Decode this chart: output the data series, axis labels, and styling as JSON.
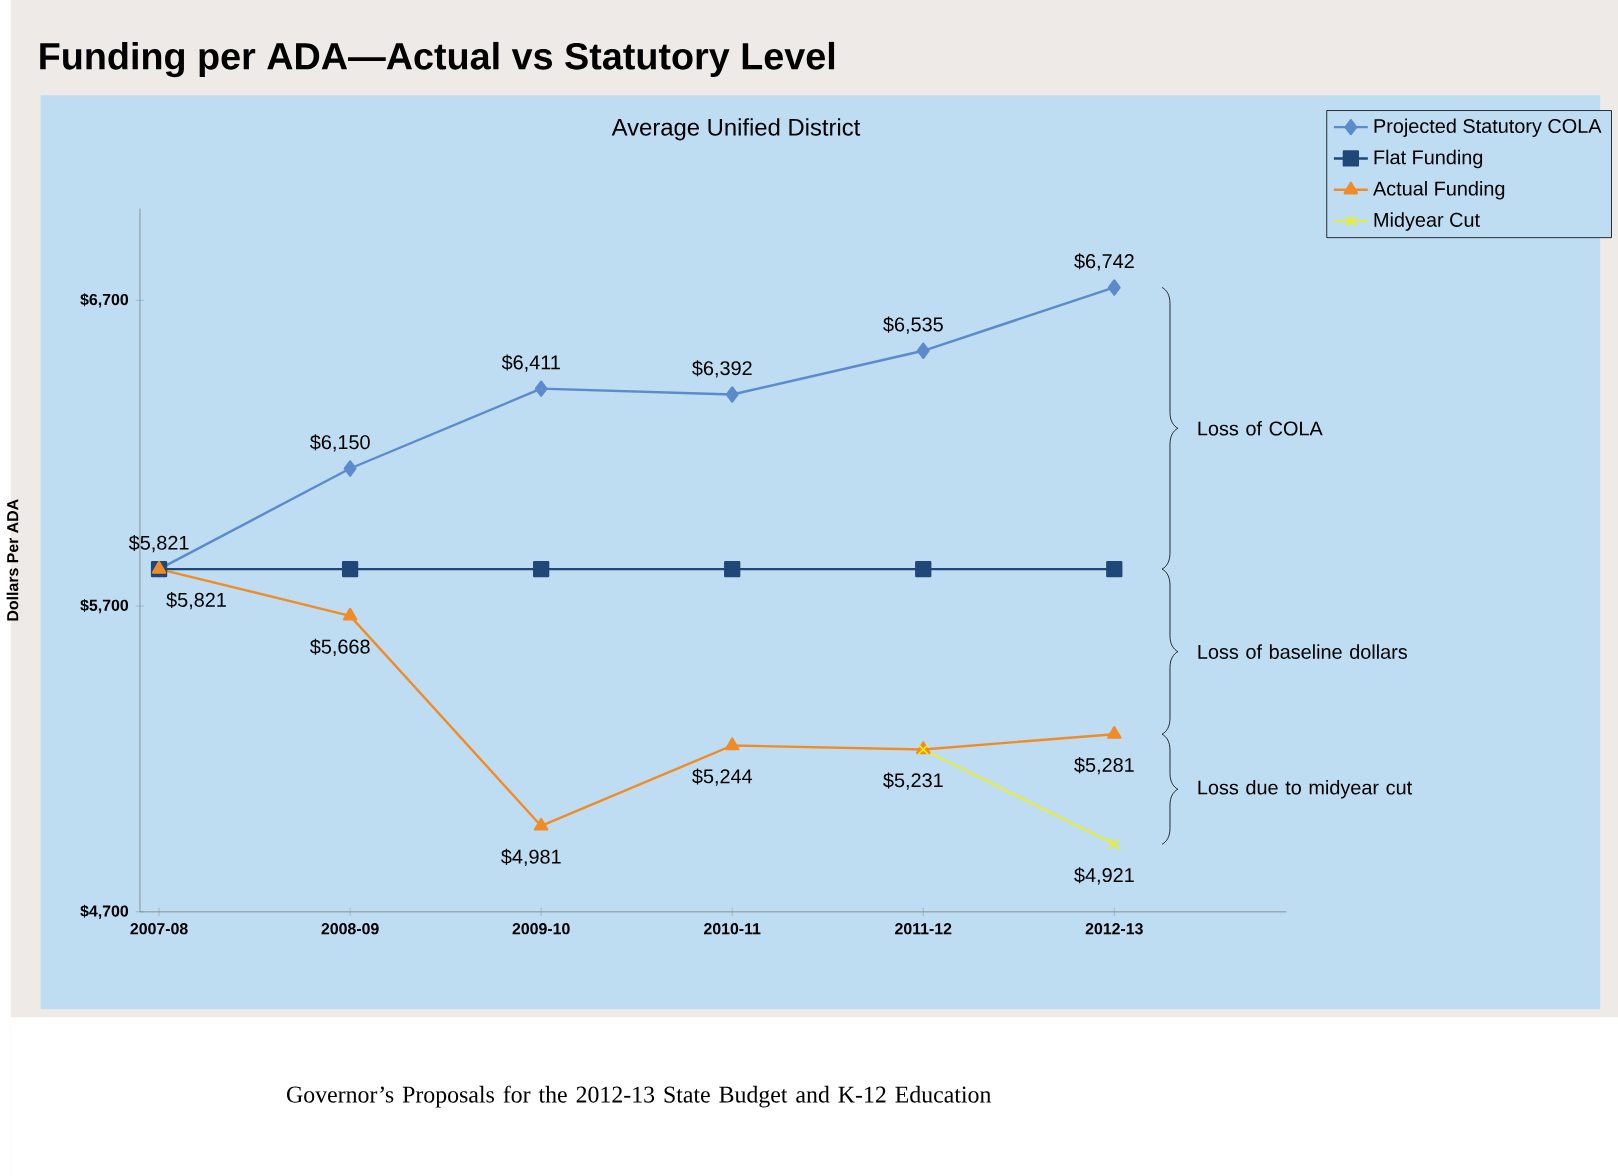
{
  "chart_data": {
    "type": "line",
    "title": "Funding per ADA—Actual vs Statutory Level",
    "subtitle": "Average Unified District",
    "ylabel": "Dollars Per ADA",
    "categories": [
      "2007-08",
      "2008-09",
      "2009-10",
      "2010-11",
      "2011-12",
      "2012-13"
    ],
    "ylim": [
      4700,
      7000
    ],
    "yticks": [
      {
        "value": 4700,
        "label": "$4,700"
      },
      {
        "value": 5700,
        "label": "$5,700"
      },
      {
        "value": 6700,
        "label": "$6,700"
      }
    ],
    "series": [
      {
        "name": "Projected Statutory COLA",
        "color": "#5b8bcb",
        "marker": "diamond",
        "values": [
          5821,
          6150,
          6411,
          6392,
          6535,
          6742
        ],
        "value_labels": [
          "$5,821",
          "$6,150",
          "$6,411",
          "$6,392",
          "$6,535",
          "$6,742"
        ]
      },
      {
        "name": "Flat Funding",
        "color": "#1f4778",
        "marker": "square",
        "values": [
          5821,
          5821,
          5821,
          5821,
          5821,
          5821
        ]
      },
      {
        "name": "Actual Funding",
        "color": "#f08c28",
        "marker": "triangle",
        "values": [
          5821,
          5668,
          4981,
          5244,
          5231,
          5281
        ],
        "value_labels": [
          "$5,821",
          "$5,668",
          "$4,981",
          "$5,244",
          "$5,231",
          "$5,281"
        ]
      },
      {
        "name": "Midyear Cut",
        "color": "#f2f20a",
        "marker": "cross",
        "values": [
          null,
          null,
          null,
          null,
          5231,
          4921
        ],
        "value_labels": [
          null,
          null,
          null,
          null,
          null,
          "$4,921"
        ]
      }
    ],
    "annotations": [
      "Loss of COLA",
      "Loss of baseline dollars",
      "Loss due to midyear cut",
      "Governor’s Proposals for the 2012-13 State Budget and K-12 Education"
    ],
    "legend": "top right",
    "grid": false
  }
}
